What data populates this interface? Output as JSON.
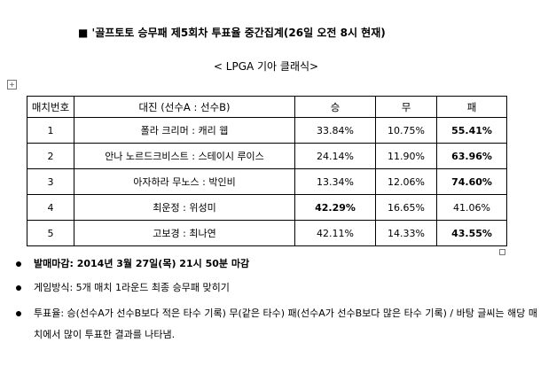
{
  "header": {
    "title": "■ '골프토토 승무패 제5회차 투표율 중간집계(26일 오전 8시 현재)",
    "subtitle": "< LPGA 기아 클래식>"
  },
  "table": {
    "columns": [
      "매치번호",
      "대진 (선수A : 선수B)",
      "승",
      "무",
      "패"
    ],
    "rows": [
      [
        "1",
        "폴라 크리머 : 캐리 웹",
        "33.84%",
        "10.75%",
        "55.41%"
      ],
      [
        "2",
        "안나 노르드크비스트 : 스테이시 루이스",
        "24.14%",
        "11.90%",
        "63.96%"
      ],
      [
        "3",
        "아자하라 무노스 : 박인비",
        "13.34%",
        "12.06%",
        "74.60%"
      ],
      [
        "4",
        "최운정 : 위성미",
        "42.29%",
        "16.65%",
        "41.06%"
      ],
      [
        "5",
        "고보경 : 최나연",
        "42.11%",
        "14.33%",
        "43.55%"
      ]
    ]
  },
  "notes": [
    "발매마감: 2014년 3월 27일(목) 21시 50분 마감",
    "게임방식: 5개 매치 1라운드 최종 승무패 맞히기",
    "투표율: 승(선수A가 선수B보다 적은 타수 기록) 무(같은 타수) 패(선수A가 선수B보다 많은 타수 기록) / 바탕 글씨는 해당 매치에서 많이 투표한 결과를 나타냄."
  ]
}
